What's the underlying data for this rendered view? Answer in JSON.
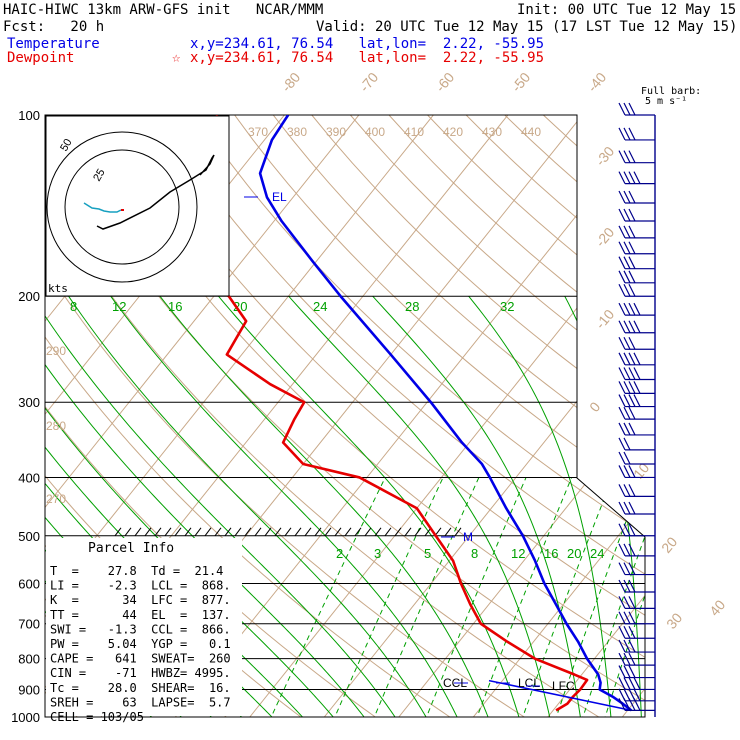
{
  "header": {
    "model": "HAIC-HIWC 13km ARW-GFS init   NCAR/MMM",
    "init": "Init: 00 UTC Tue 12 May 15",
    "fcst": "Fcst:   20 h",
    "valid": "Valid: 20 UTC Tue 12 May 15 (17 LST Tue 12 May 15)",
    "temperature_label": "Temperature",
    "temperature_loc": "x,y=234.61, 76.54   lat,lon=  2.22, -55.95",
    "dewpoint_label": "Dewpoint",
    "dewpoint_loc": "x,y=234.61, 76.54   lat,lon=  2.22, -55.95",
    "barb_scale_1": "Full barb:",
    "barb_scale_2": "5 m s⁻¹"
  },
  "parcel_info": {
    "title": "Parcel Info",
    "rows": [
      "T  =    27.8  Td =  21.4",
      "LI =    -2.3  LCL =  868.",
      "K  =      34  LFC =  877.",
      "TT =      44  EL  =  137.",
      "SWI =   -1.3  CCL =  866.",
      "PW =    5.04  YGP =   0.1",
      "CAPE =   641  SWEAT=  260",
      "CIN =    -71  HWBZ= 4995.",
      "Tc =    28.0  SHEAR=  16.",
      "SREH =    63  LAPSE=  5.7",
      "CELL = 103/05"
    ]
  },
  "hodograph": {
    "unit_label": "kts",
    "ring_labels": [
      "25",
      "50"
    ]
  },
  "colors": {
    "temperature": "#0000e6",
    "dewpoint": "#e60000",
    "isotherm": "#c8a888",
    "dry_adiabat": "#c8a888",
    "moist_adiabat": "#00a000",
    "mixing_ratio": "#00a000",
    "isobar": "#000000",
    "wind_barb": "#00008c"
  },
  "chart_data": {
    "type": "skew-t log-p",
    "y_axis": {
      "label": "pressure (hPa)",
      "scale": "log",
      "ylim": [
        1000,
        100
      ],
      "ticks": [
        100,
        200,
        300,
        400,
        500,
        600,
        700,
        800,
        900,
        1000
      ]
    },
    "isotherm_labels": [
      -80,
      -70,
      -60,
      -50,
      -40,
      -30,
      -20,
      -10,
      0,
      10,
      20,
      30,
      40
    ],
    "theta_labels": [
      370,
      380,
      390,
      400,
      410,
      420,
      430,
      440
    ],
    "theta_left_labels": [
      290,
      280,
      270
    ],
    "mixing_ratio_upper_labels": [
      8,
      12,
      16,
      20,
      24,
      28,
      32
    ],
    "mixing_ratio_lower_labels": [
      2,
      3,
      5,
      8,
      12,
      16,
      20,
      24
    ],
    "series": [
      {
        "name": "Temperature",
        "color": "#0000e6",
        "points": [
          [
            975,
            30.5
          ],
          [
            950,
            28.6
          ],
          [
            925,
            26.5
          ],
          [
            900,
            24.0
          ],
          [
            877,
            23.4
          ],
          [
            850,
            22.2
          ],
          [
            800,
            19.0
          ],
          [
            750,
            16.0
          ],
          [
            700,
            12.5
          ],
          [
            650,
            9.0
          ],
          [
            600,
            5.2
          ],
          [
            550,
            1.5
          ],
          [
            500,
            -2.8
          ],
          [
            450,
            -8.0
          ],
          [
            400,
            -13.5
          ],
          [
            380,
            -16.0
          ],
          [
            350,
            -21.0
          ],
          [
            300,
            -29.5
          ],
          [
            250,
            -40.0
          ],
          [
            200,
            -53.0
          ],
          [
            175,
            -60.5
          ],
          [
            150,
            -69.0
          ],
          [
            137,
            -73.5
          ],
          [
            125,
            -77.0
          ],
          [
            110,
            -79.0
          ],
          [
            100,
            -79.5
          ]
        ]
      },
      {
        "name": "Dewpoint",
        "color": "#e60000",
        "points": [
          [
            975,
            20.4
          ],
          [
            950,
            21.2
          ],
          [
            925,
            21.2
          ],
          [
            900,
            21.4
          ],
          [
            868,
            21.3
          ],
          [
            850,
            19.0
          ],
          [
            800,
            12.0
          ],
          [
            750,
            6.5
          ],
          [
            700,
            1.0
          ],
          [
            650,
            -2.5
          ],
          [
            600,
            -6.0
          ],
          [
            550,
            -9.5
          ],
          [
            500,
            -14.5
          ],
          [
            450,
            -20.0
          ],
          [
            400,
            -31.0
          ],
          [
            380,
            -40.0
          ],
          [
            350,
            -45.0
          ],
          [
            320,
            -46.0
          ],
          [
            300,
            -46.5
          ],
          [
            280,
            -53.0
          ],
          [
            250,
            -62.0
          ],
          [
            220,
            -63.0
          ],
          [
            200,
            -68.0
          ],
          [
            180,
            -78.0
          ],
          [
            160,
            -80.0
          ],
          [
            150,
            -82.0
          ],
          [
            140,
            -83.0
          ],
          [
            125,
            -86.0
          ],
          [
            110,
            -88.0
          ],
          [
            100,
            -89.0
          ]
        ]
      }
    ],
    "annotations": [
      {
        "text": "EL",
        "p": 137
      },
      {
        "text": "CCL",
        "p": 866
      },
      {
        "text": "LCL",
        "p": 868
      },
      {
        "text": "LFC",
        "p": 877
      },
      {
        "text": "M",
        "p": 495
      }
    ],
    "wind_barbs": [
      {
        "p": 100,
        "barbs": 3
      },
      {
        "p": 110,
        "barbs": 3
      },
      {
        "p": 120,
        "barbs": 3
      },
      {
        "p": 130,
        "barbs": 4
      },
      {
        "p": 140,
        "barbs": 3
      },
      {
        "p": 150,
        "barbs": 3
      },
      {
        "p": 160,
        "barbs": 3
      },
      {
        "p": 170,
        "barbs": 3
      },
      {
        "p": 180,
        "barbs": 3
      },
      {
        "p": 190,
        "barbs": 3
      },
      {
        "p": 200,
        "barbs": 3
      },
      {
        "p": 215,
        "barbs": 4
      },
      {
        "p": 230,
        "barbs": 4
      },
      {
        "p": 245,
        "barbs": 3
      },
      {
        "p": 260,
        "barbs": 4
      },
      {
        "p": 275,
        "barbs": 4
      },
      {
        "p": 290,
        "barbs": 4
      },
      {
        "p": 305,
        "barbs": 4
      },
      {
        "p": 320,
        "barbs": 3
      },
      {
        "p": 340,
        "barbs": 3
      },
      {
        "p": 360,
        "barbs": 2
      },
      {
        "p": 380,
        "barbs": 2
      },
      {
        "p": 400,
        "barbs": 3
      },
      {
        "p": 430,
        "barbs": 3
      },
      {
        "p": 460,
        "barbs": 3
      },
      {
        "p": 500,
        "barbs": 3
      },
      {
        "p": 540,
        "barbs": 3
      },
      {
        "p": 580,
        "barbs": 3
      },
      {
        "p": 620,
        "barbs": 3
      },
      {
        "p": 660,
        "barbs": 3
      },
      {
        "p": 700,
        "barbs": 3
      },
      {
        "p": 740,
        "barbs": 3
      },
      {
        "p": 780,
        "barbs": 3
      },
      {
        "p": 820,
        "barbs": 3
      },
      {
        "p": 860,
        "barbs": 3
      },
      {
        "p": 900,
        "barbs": 4
      },
      {
        "p": 940,
        "barbs": 4
      },
      {
        "p": 975,
        "barbs": 4
      }
    ]
  }
}
